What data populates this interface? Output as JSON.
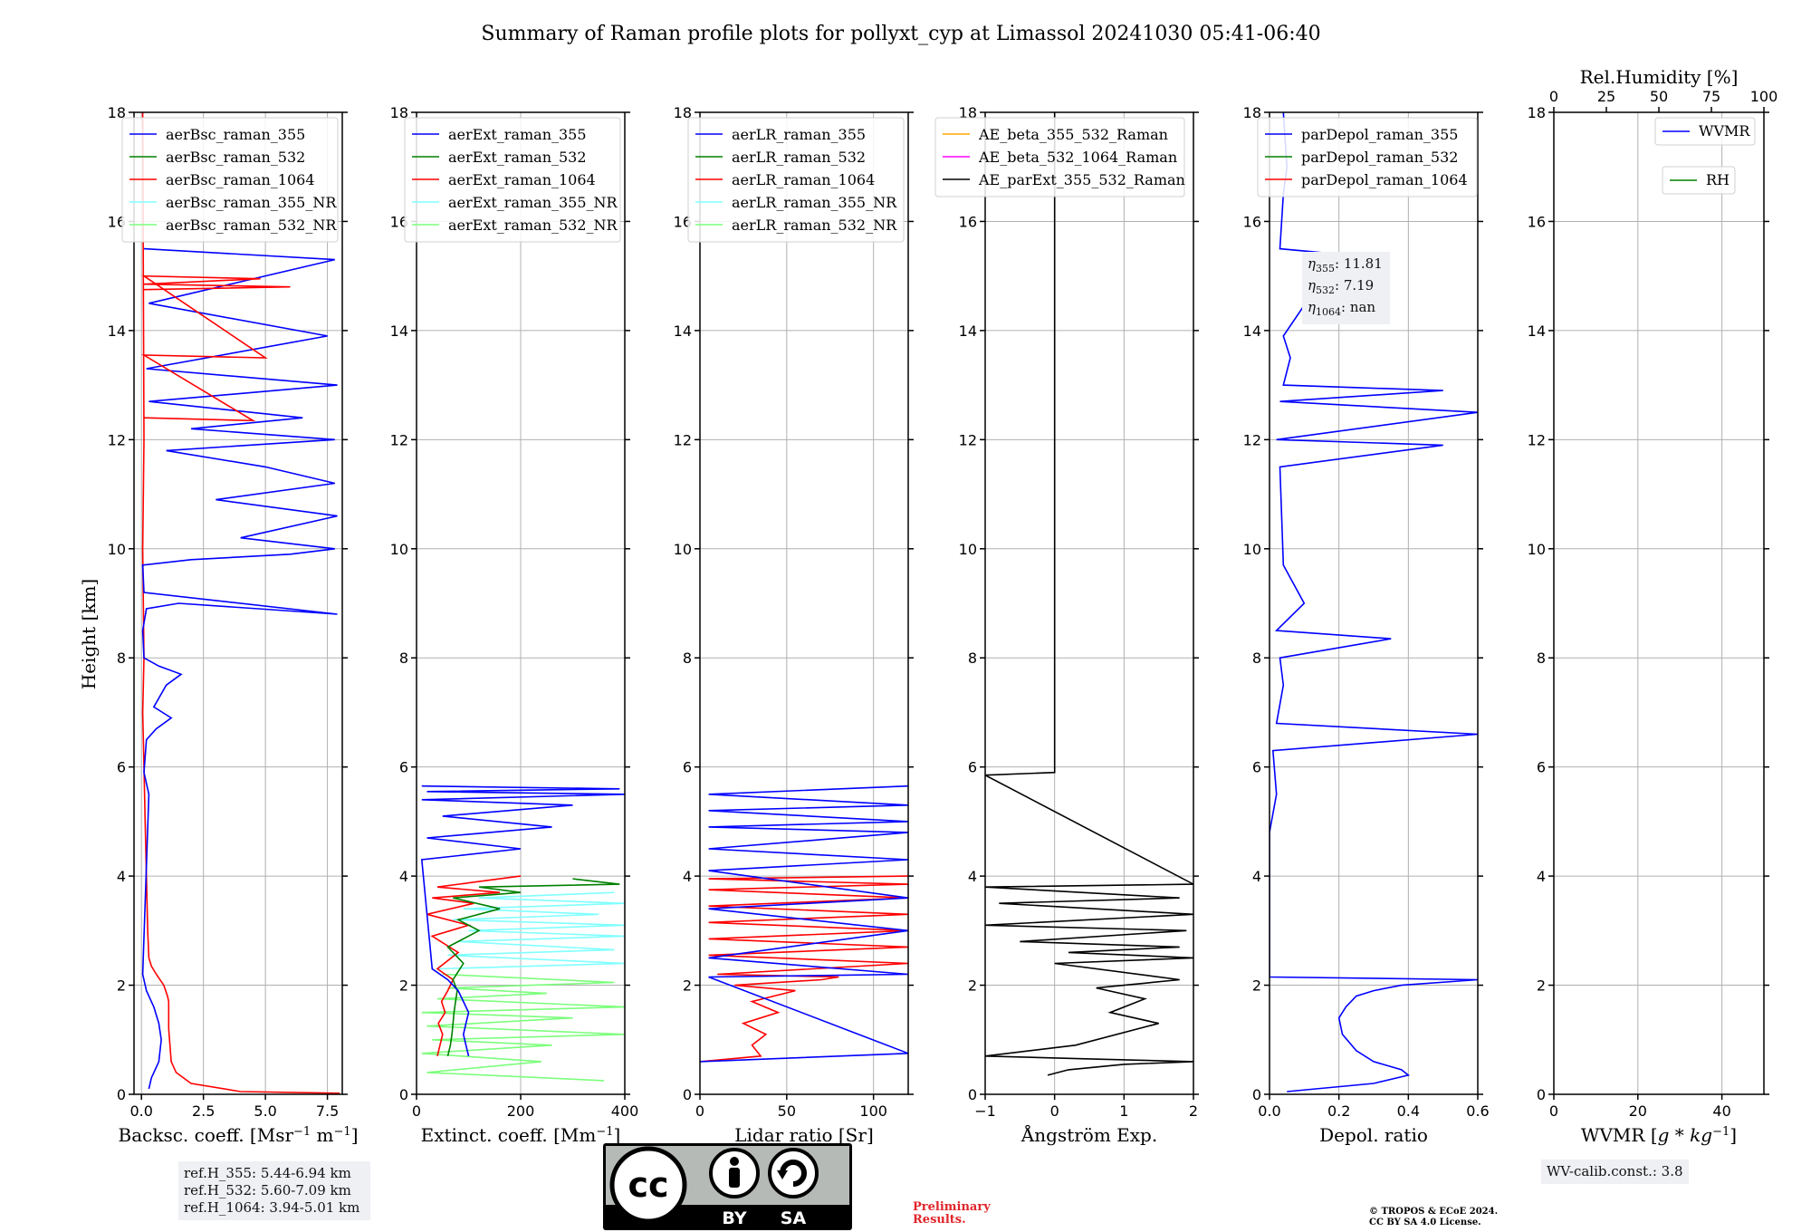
{
  "title": "Summary of Raman profile plots for pollyxt_cyp at Limassol 20241030 05:41-06:40",
  "ylabel": "Height [km]",
  "colors": {
    "blue": "#0000ff",
    "green": "#008000",
    "red": "#ff0000",
    "cyan": "#80ffff",
    "lightgreen": "#7cff7c",
    "orange": "#ffa500",
    "magenta": "#ff00ff",
    "black": "#000000",
    "grid": "#b0b0b0"
  },
  "chart_data": [
    {
      "type": "line",
      "panel": "backscatter",
      "xlabel_pre": "Backsc. coeff. [Msr",
      "xlabel_exp1": "−1",
      "xlabel_mid": " m",
      "xlabel_exp2": "−1",
      "xlabel_post": "]",
      "xlim": [
        -0.3,
        8.1
      ],
      "ylim": [
        0,
        18
      ],
      "xticks": [
        0,
        2.5,
        5,
        7.5
      ],
      "xticklabels": [
        "0.0",
        "2.5",
        "5.0",
        "7.5"
      ],
      "yticks": [
        0,
        2,
        4,
        6,
        8,
        10,
        12,
        14,
        16,
        18
      ],
      "legend": [
        "aerBsc_raman_355",
        "aerBsc_raman_532",
        "aerBsc_raman_1064",
        "aerBsc_raman_355_NR",
        "aerBsc_raman_532_NR"
      ],
      "legend_colors": [
        "blue",
        "green",
        "red",
        "cyan",
        "lightgreen"
      ],
      "series": [
        {
          "name": "aerBsc_raman_1064",
          "color": "red",
          "x": [
            8.0,
            4.0,
            2.0,
            1.4,
            1.2,
            1.15,
            1.1,
            1.1,
            1.1,
            1.05,
            0.9,
            0.6,
            0.4,
            0.3,
            0.25,
            0.2,
            0.15,
            0.1,
            0.05,
            0.1,
            0.05,
            0.1,
            0.05
          ],
          "y": [
            0.02,
            0.05,
            0.2,
            0.4,
            0.6,
            0.9,
            1.2,
            1.5,
            1.7,
            1.8,
            2.0,
            2.2,
            2.35,
            2.5,
            3.0,
            4.0,
            5.0,
            6.0,
            7.0,
            8.0,
            10.0,
            12.0,
            18.0
          ]
        },
        {
          "name": "aerBsc_raman_355",
          "color": "blue",
          "x": [
            0.3,
            0.4,
            0.7,
            0.8,
            0.7,
            0.5,
            0.2,
            0.05,
            0.3,
            0.1,
            0.2,
            0.6,
            1.2,
            0.5,
            1.0,
            1.6,
            0.7,
            0.1,
            0.05,
            0.2,
            1.5,
            7.9,
            0.1,
            0.05,
            2.0,
            6.0,
            7.8,
            4.0,
            7.9,
            3.0,
            7.8,
            5.0,
            1.0,
            7.8,
            2.0,
            6.5,
            0.3,
            7.9,
            0.2,
            7.5,
            0.3,
            7.8,
            0.1
          ],
          "y": [
            0.1,
            0.3,
            0.6,
            1.0,
            1.3,
            1.6,
            1.9,
            2.2,
            5.5,
            5.9,
            6.5,
            6.7,
            6.9,
            7.1,
            7.5,
            7.7,
            7.85,
            8.0,
            8.5,
            8.9,
            9.0,
            8.8,
            9.2,
            9.7,
            9.8,
            9.9,
            10.0,
            10.2,
            10.6,
            10.9,
            11.2,
            11.5,
            11.8,
            12.0,
            12.2,
            12.4,
            12.7,
            13.0,
            13.3,
            13.9,
            14.5,
            15.3,
            15.5
          ]
        },
        {
          "name": "aerBsc_raman_1064_spikes",
          "color": "red",
          "x": [
            0.1,
            6.0,
            0.1,
            4.8,
            0.1,
            5.0,
            0.1,
            4.5,
            0.1
          ],
          "y": [
            14.75,
            14.8,
            14.85,
            14.95,
            15.0,
            13.5,
            13.55,
            12.35,
            12.4
          ]
        }
      ],
      "refbox": [
        "ref.H_355: 5.44-6.94 km",
        "ref.H_532: 5.60-7.09 km",
        "ref.H_1064: 3.94-5.01 km"
      ]
    },
    {
      "type": "line",
      "panel": "extinction",
      "xlabel_pre": "Extinct. coeff. [Mm",
      "xlabel_exp1": "−1",
      "xlabel_post": "]",
      "xlim": [
        0,
        400
      ],
      "ylim": [
        0,
        18
      ],
      "xticks": [
        0,
        200,
        400
      ],
      "xticklabels": [
        "0",
        "200",
        "400"
      ],
      "yticks": [
        0,
        2,
        4,
        6,
        8,
        10,
        12,
        14,
        16,
        18
      ],
      "legend": [
        "aerExt_raman_355",
        "aerExt_raman_532",
        "aerExt_raman_1064",
        "aerExt_raman_355_NR",
        "aerExt_raman_532_NR"
      ],
      "legend_colors": [
        "blue",
        "green",
        "red",
        "cyan",
        "lightgreen"
      ],
      "series": [
        {
          "name": "aerExt_raman_532_NR",
          "color": "lightgreen",
          "x": [
            360,
            20,
            240,
            10,
            260,
            30,
            400,
            20,
            300,
            10,
            400,
            40,
            250,
            60,
            380,
            50
          ],
          "y": [
            0.25,
            0.4,
            0.6,
            0.75,
            0.9,
            1.0,
            1.1,
            1.25,
            1.4,
            1.5,
            1.6,
            1.75,
            1.85,
            1.95,
            2.05,
            2.2
          ]
        },
        {
          "name": "aerExt_raman_355_NR",
          "color": "cyan",
          "x": [
            40,
            400,
            60,
            380,
            80,
            400,
            100,
            400,
            70,
            350,
            90,
            400,
            120,
            380
          ],
          "y": [
            2.3,
            2.4,
            2.55,
            2.65,
            2.8,
            2.9,
            3.0,
            3.1,
            3.2,
            3.3,
            3.4,
            3.5,
            3.6,
            3.7
          ]
        },
        {
          "name": "aerExt_raman_1064",
          "color": "red",
          "x": [
            40,
            45,
            50,
            42,
            55,
            48,
            60,
            70,
            40,
            80,
            30,
            100,
            20,
            110,
            30,
            160,
            40,
            120,
            200
          ],
          "y": [
            0.7,
            0.9,
            1.1,
            1.3,
            1.5,
            1.7,
            1.9,
            2.1,
            2.3,
            2.6,
            2.9,
            3.1,
            3.3,
            3.5,
            3.6,
            3.7,
            3.8,
            3.9,
            4.0
          ]
        },
        {
          "name": "aerExt_raman_532",
          "color": "green",
          "x": [
            60,
            65,
            68,
            70,
            72,
            75,
            78,
            70,
            90,
            60,
            120,
            80,
            160,
            70,
            200,
            120,
            390,
            300
          ],
          "y": [
            0.7,
            0.9,
            1.1,
            1.3,
            1.5,
            1.7,
            1.9,
            2.1,
            2.4,
            2.7,
            3.0,
            3.2,
            3.4,
            3.6,
            3.7,
            3.8,
            3.85,
            3.95
          ]
        },
        {
          "name": "aerExt_raman_355",
          "color": "blue",
          "x": [
            100,
            95,
            90,
            95,
            100,
            90,
            80,
            60,
            30,
            10,
            200,
            20,
            260,
            50,
            300,
            10,
            400,
            20,
            390,
            10
          ],
          "y": [
            0.7,
            0.9,
            1.1,
            1.3,
            1.5,
            1.7,
            1.9,
            2.1,
            2.3,
            4.3,
            4.5,
            4.7,
            4.9,
            5.1,
            5.3,
            5.4,
            5.5,
            5.55,
            5.6,
            5.65
          ]
        }
      ]
    },
    {
      "type": "line",
      "panel": "lidar_ratio",
      "xlabel": "Lidar ratio [Sr]",
      "xlim": [
        0,
        120
      ],
      "ylim": [
        0,
        18
      ],
      "xticks": [
        0,
        50,
        100
      ],
      "xticklabels": [
        "0",
        "50",
        "100"
      ],
      "yticks": [
        0,
        2,
        4,
        6,
        8,
        10,
        12,
        14,
        16,
        18
      ],
      "legend": [
        "aerLR_raman_355",
        "aerLR_raman_532",
        "aerLR_raman_1064",
        "aerLR_raman_355_NR",
        "aerLR_raman_532_NR"
      ],
      "legend_colors": [
        "blue",
        "green",
        "red",
        "cyan",
        "lightgreen"
      ],
      "series": [
        {
          "name": "aerLR_raman_1064",
          "color": "red",
          "x": [
            0,
            35,
            30,
            38,
            25,
            45,
            30,
            55,
            20,
            70,
            80,
            10,
            120,
            5,
            120,
            5,
            120,
            5,
            120,
            5,
            120,
            5,
            120,
            5,
            120
          ],
          "y": [
            0.6,
            0.7,
            0.9,
            1.1,
            1.3,
            1.5,
            1.7,
            1.9,
            2.0,
            2.1,
            2.15,
            2.2,
            2.4,
            2.55,
            2.7,
            2.85,
            3.0,
            3.15,
            3.3,
            3.45,
            3.6,
            3.75,
            3.85,
            3.95,
            4.0
          ]
        },
        {
          "name": "aerLR_raman_355",
          "color": "blue",
          "x": [
            0,
            120,
            5,
            120,
            5,
            120,
            5,
            120,
            5,
            120,
            5,
            120,
            5,
            120,
            5,
            120,
            5,
            120
          ],
          "y": [
            0.6,
            0.75,
            2.15,
            2.2,
            2.5,
            3.0,
            3.4,
            3.6,
            4.1,
            4.3,
            4.5,
            4.8,
            4.9,
            5.0,
            5.2,
            5.3,
            5.5,
            5.65
          ]
        }
      ]
    },
    {
      "type": "line",
      "panel": "angstrom",
      "xlabel": "Ångström Exp.",
      "xlim": [
        -1,
        2
      ],
      "ylim": [
        0,
        18
      ],
      "xticks": [
        -1,
        0,
        1,
        2
      ],
      "xticklabels": [
        "−1",
        "0",
        "1",
        "2"
      ],
      "yticks": [
        0,
        2,
        4,
        6,
        8,
        10,
        12,
        14,
        16,
        18
      ],
      "legend": [
        "AE_beta_355_532_Raman",
        "AE_beta_532_1064_Raman",
        "AE_parExt_355_532_Raman"
      ],
      "legend_colors": [
        "orange",
        "magenta",
        "black"
      ],
      "series": [
        {
          "name": "AE_parExt_355_532_Raman",
          "color": "black",
          "x": [
            -0.1,
            0.2,
            1.0,
            2.0,
            0.5,
            -1.0,
            0.3,
            1.5,
            0.8,
            1.3,
            0.6,
            1.8,
            0.0,
            2.0,
            0.2,
            1.8,
            -0.5,
            1.9,
            -1.0,
            2.0,
            -0.8,
            1.8,
            -1.0,
            2.0,
            -1.0,
            0.0,
            0.0
          ],
          "y": [
            0.35,
            0.45,
            0.55,
            0.6,
            0.65,
            0.7,
            0.9,
            1.3,
            1.5,
            1.75,
            1.95,
            2.1,
            2.4,
            2.5,
            2.6,
            2.7,
            2.8,
            3.0,
            3.1,
            3.3,
            3.5,
            3.6,
            3.8,
            3.85,
            5.85,
            5.9,
            18.0
          ]
        }
      ]
    },
    {
      "type": "line",
      "panel": "depolarization",
      "xlabel": "Depol. ratio",
      "xlim": [
        0,
        0.6
      ],
      "ylim": [
        0,
        18
      ],
      "xticks": [
        0,
        0.2,
        0.4,
        0.6
      ],
      "xticklabels": [
        "0.0",
        "0.2",
        "0.4",
        "0.6"
      ],
      "yticks": [
        0,
        2,
        4,
        6,
        8,
        10,
        12,
        14,
        16,
        18
      ],
      "legend": [
        "parDepol_raman_355",
        "parDepol_raman_532",
        "parDepol_raman_1064"
      ],
      "legend_colors": [
        "blue",
        "green",
        "red"
      ],
      "series": [
        {
          "name": "parDepol_raman_355",
          "color": "blue",
          "x": [
            0.05,
            0.3,
            0.4,
            0.38,
            0.3,
            0.25,
            0.21,
            0.2,
            0.22,
            0.25,
            0.3,
            0.38,
            0.6,
            0.0,
            0.0,
            0.0,
            0.02,
            0.01,
            0.6,
            0.02,
            0.04,
            0.03,
            0.35,
            0.02,
            0.1,
            0.04,
            0.03,
            0.5,
            0.02,
            0.6,
            0.03,
            0.5,
            0.04,
            0.06,
            0.04,
            0.2,
            0.03,
            0.04,
            0.05,
            0.04
          ],
          "y": [
            0.05,
            0.2,
            0.35,
            0.45,
            0.6,
            0.8,
            1.1,
            1.4,
            1.6,
            1.8,
            1.9,
            2.0,
            2.1,
            2.15,
            3.8,
            4.8,
            5.5,
            6.3,
            6.6,
            6.8,
            7.5,
            8.0,
            8.35,
            8.5,
            9.0,
            9.7,
            11.5,
            11.9,
            12.0,
            12.5,
            12.7,
            12.9,
            13.0,
            13.5,
            13.9,
            15.4,
            15.5,
            16.5,
            17.0,
            18.0
          ]
        }
      ],
      "eta": {
        "l355": "355",
        "v355": ": 11.81",
        "l532": "532",
        "v532": ": 7.19",
        "l1064": "1064",
        "v1064": ": nan"
      }
    },
    {
      "type": "line",
      "panel": "wvmr",
      "xlabel_pre": "WVMR [",
      "xlabel_g": "g",
      "xlabel_mid": " * ",
      "xlabel_kg": "kg",
      "xlabel_exp": "−1",
      "xlabel_post": "]",
      "xlim": [
        0,
        50
      ],
      "ylim": [
        0,
        18
      ],
      "xticks": [
        0,
        20,
        40
      ],
      "xticklabels": [
        "0",
        "20",
        "40"
      ],
      "top_label": "Rel.Humidity [%]",
      "top_xlim": [
        0,
        100
      ],
      "top_xticks": [
        0,
        25,
        50,
        75,
        100
      ],
      "top_xticklabels": [
        "0",
        "25",
        "50",
        "75",
        "100"
      ],
      "yticks": [
        0,
        2,
        4,
        6,
        8,
        10,
        12,
        14,
        16,
        18
      ],
      "legend": [
        "WVMR",
        "RH"
      ],
      "legend_colors": [
        "blue",
        "green"
      ],
      "series": [],
      "calib": "WV-calib.const.: 3.8"
    }
  ],
  "footer": {
    "license_by": "BY",
    "license_sa": "SA",
    "license_cc": "cc",
    "preliminary_line1": "Preliminary",
    "preliminary_line2": "Results.",
    "copyright_line1": "© TROPOS & ECoE 2024.",
    "copyright_line2": "CC BY SA 4.0 License."
  }
}
